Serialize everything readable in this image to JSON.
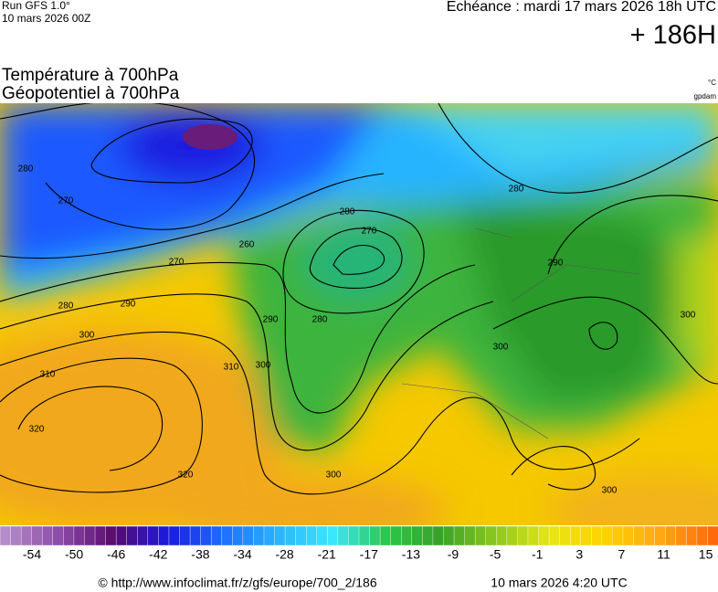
{
  "header": {
    "run": "Run GFS 1.0°",
    "run_date": "10 mars 2026 00Z",
    "echeance": "Echéance : mardi 17 mars 2026 18h UTC",
    "lead": "+ 186H",
    "title_line1": "Température à 700hPa",
    "title_line2": "Géopotentiel à 700hPa",
    "unit_temp": "°C",
    "unit_geo": "gpdam"
  },
  "contour_labels": [
    "280",
    "270",
    "270",
    "280",
    "290",
    "300",
    "310",
    "320",
    "320",
    "310",
    "300",
    "290",
    "280",
    "270",
    "280",
    "260",
    "280",
    "290",
    "300",
    "300",
    "300",
    "300"
  ],
  "colorbar": {
    "labels": [
      -54,
      -50,
      -46,
      -42,
      -38,
      -34,
      -28,
      -21,
      -17,
      -13,
      -9,
      -5,
      -1,
      3,
      7,
      11,
      15
    ],
    "stops": [
      "#b48cc8",
      "#8c4ca8",
      "#5a0a6e",
      "#1a1ae0",
      "#1e6eff",
      "#28b4ff",
      "#3ce6ff",
      "#2ac84a",
      "#3aa02a",
      "#8cc81e",
      "#e6e614",
      "#ffd200",
      "#ffaa14",
      "#ff6a0a"
    ]
  },
  "footer": {
    "url": "© http://www.infoclimat.fr/z/gfs/europe/700_2/186",
    "date": "10 mars 2026  4:20 UTC"
  }
}
